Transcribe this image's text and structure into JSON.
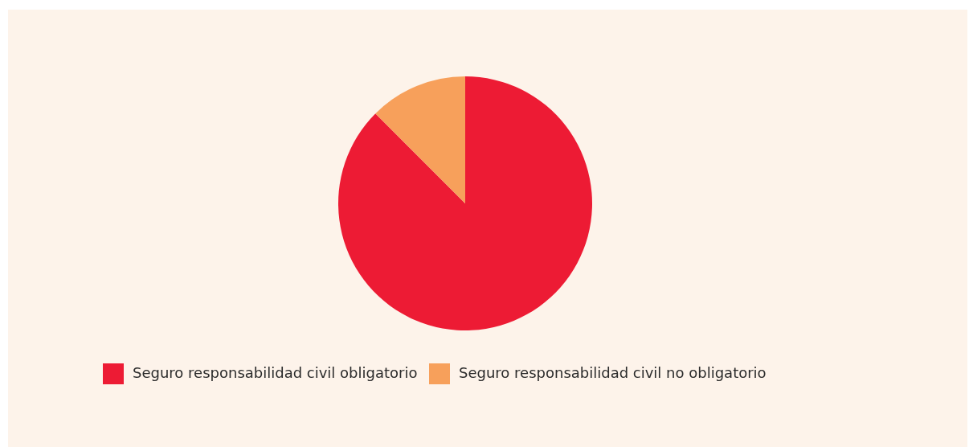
{
  "chart_data": {
    "type": "pie",
    "categories": [
      "Seguro responsabilidad civil obligatorio",
      "Seguro responsabilidad civil no obligatorio"
    ],
    "values": [
      87.5,
      12.5
    ],
    "colors": [
      "#ed1b34",
      "#f7a05b"
    ],
    "legend": "bottom"
  }
}
